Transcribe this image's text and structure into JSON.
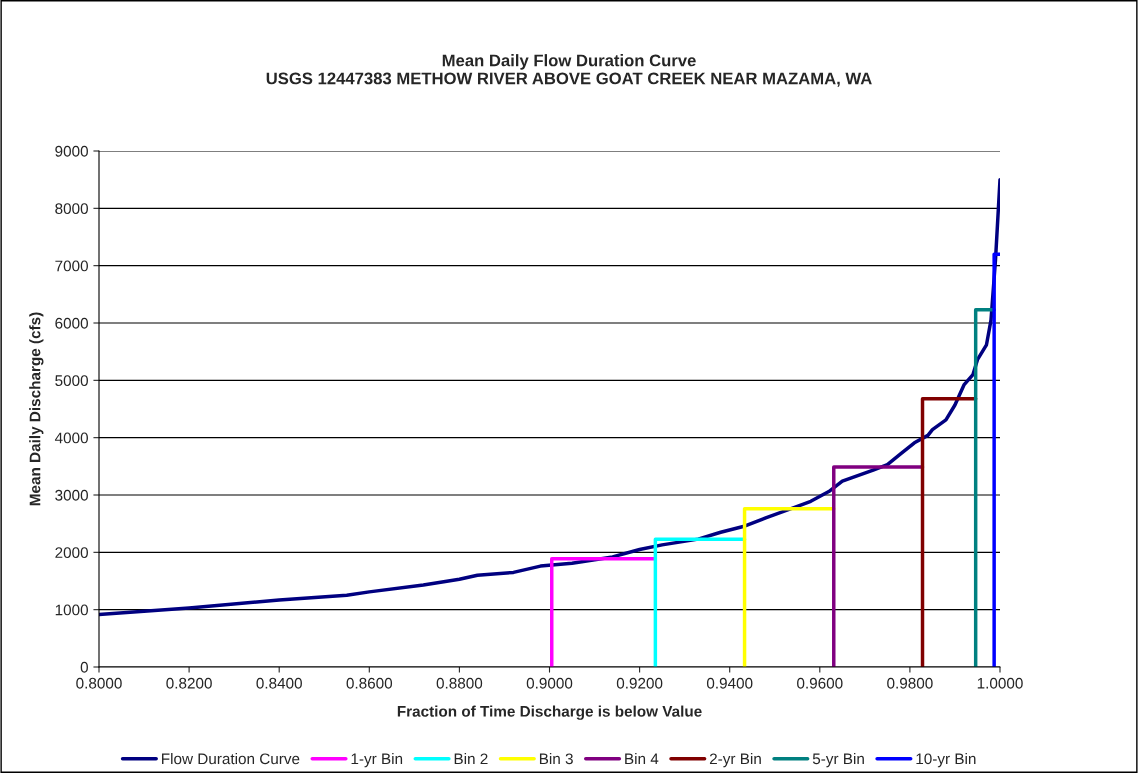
{
  "chart_data": {
    "type": "line",
    "title": "Mean Daily Flow Duration Curve\nUSGS 12447383 METHOW RIVER ABOVE GOAT CREEK NEAR MAZAMA, WA",
    "xlabel": "Fraction of Time Discharge is below Value",
    "ylabel": "Mean Daily Discharge (cfs)",
    "xlim": [
      0.8,
      1.0
    ],
    "xticks": [
      {
        "value": 0.8,
        "label": "0.8000"
      },
      {
        "value": 0.82,
        "label": "0.8200"
      },
      {
        "value": 0.84,
        "label": "0.8400"
      },
      {
        "value": 0.86,
        "label": "0.8600"
      },
      {
        "value": 0.88,
        "label": "0.8800"
      },
      {
        "value": 0.9,
        "label": "0.9000"
      },
      {
        "value": 0.92,
        "label": "0.9200"
      },
      {
        "value": 0.94,
        "label": "0.9400"
      },
      {
        "value": 0.96,
        "label": "0.9600"
      },
      {
        "value": 0.98,
        "label": "0.9800"
      },
      {
        "value": 1.0,
        "label": "1.0000"
      }
    ],
    "ylim": [
      0,
      9000
    ],
    "yticks": [
      0,
      1000,
      2000,
      3000,
      4000,
      5000,
      6000,
      7000,
      8000,
      9000
    ],
    "grid": "y",
    "legend": "bottom",
    "series": [
      {
        "name": "Flow Duration Curve",
        "color": "#000080",
        "x": [
          0.8,
          0.82,
          0.84,
          0.855,
          0.86,
          0.872,
          0.88,
          0.884,
          0.892,
          0.898,
          0.905,
          0.914,
          0.92,
          0.925,
          0.933,
          0.938,
          0.943,
          0.948,
          0.955,
          0.958,
          0.962,
          0.965,
          0.972,
          0.975,
          0.978,
          0.981,
          0.984,
          0.985,
          0.988,
          0.99,
          0.992,
          0.994,
          0.995,
          0.997,
          0.998,
          0.999,
          1.0
        ],
        "values": [
          917,
          1030,
          1170,
          1250,
          1310,
          1430,
          1530,
          1600,
          1650,
          1760,
          1810,
          1920,
          2050,
          2130,
          2230,
          2350,
          2450,
          2600,
          2800,
          2890,
          3060,
          3240,
          3440,
          3530,
          3720,
          3910,
          4040,
          4140,
          4310,
          4570,
          4920,
          5100,
          5360,
          5620,
          6050,
          7100,
          8500
        ]
      },
      {
        "name": "1-yr Bin",
        "color": "#ff00ff",
        "x": [
          0.9005,
          0.9005,
          0.9235
        ],
        "values": [
          0,
          1890,
          1890
        ]
      },
      {
        "name": "Bin 2",
        "color": "#00ffff",
        "x": [
          0.9235,
          0.9235,
          0.9433
        ],
        "values": [
          0,
          2230,
          2230
        ]
      },
      {
        "name": "Bin 3",
        "color": "#ffff00",
        "x": [
          0.9433,
          0.9433,
          0.9631
        ],
        "values": [
          0,
          2760,
          2760
        ]
      },
      {
        "name": "Bin 4",
        "color": "#800080",
        "x": [
          0.9631,
          0.9631,
          0.9828
        ],
        "values": [
          0,
          3490,
          3490
        ]
      },
      {
        "name": "2-yr Bin",
        "color": "#800000",
        "x": [
          0.9828,
          0.9828,
          0.9946
        ],
        "values": [
          0,
          4680,
          4680
        ]
      },
      {
        "name": "5-yr Bin",
        "color": "#008080",
        "x": [
          0.9946,
          0.9946,
          0.9987
        ],
        "values": [
          0,
          6230,
          6230
        ]
      },
      {
        "name": "10-yr Bin",
        "color": "#0000ff",
        "x": [
          0.9987,
          0.9987,
          1.0
        ],
        "values": [
          0,
          7200,
          7200
        ]
      }
    ]
  }
}
